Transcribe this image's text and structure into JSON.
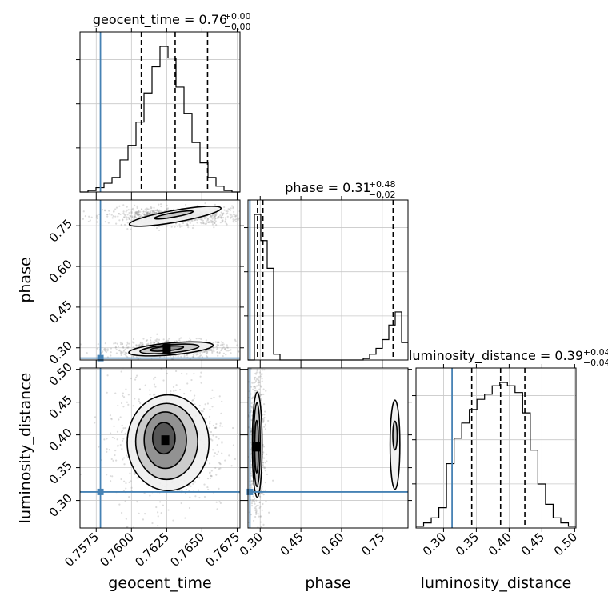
{
  "chart_data": {
    "type": "corner",
    "parameters": [
      {
        "key": "geocent_time",
        "label": "geocent_time",
        "range": [
          0.75635,
          0.7677
        ],
        "ticks": [
          "0.7575",
          "0.7600",
          "0.7625",
          "0.7650",
          "0.7675"
        ],
        "tick_values": [
          0.7575,
          0.76,
          0.7625,
          0.765,
          0.7675
        ],
        "injection": 0.7578,
        "quantiles": [
          0.7607,
          0.7631,
          0.7654
        ],
        "title_value": "0.76",
        "title_plus": "+0.00",
        "title_minus": "−0.00"
      },
      {
        "key": "phase",
        "label": "phase",
        "range": [
          0.255,
          0.845
        ],
        "ticks": [
          "0.30",
          "0.45",
          "0.60",
          "0.75"
        ],
        "tick_values": [
          0.3,
          0.45,
          0.6,
          0.75
        ],
        "injection": 0.262,
        "quantiles": [
          0.29,
          0.31,
          0.79
        ],
        "title_value": "0.31",
        "title_plus": "+0.48",
        "title_minus": "−0.02"
      },
      {
        "key": "luminosity_distance",
        "label": "luminosity_distance",
        "range": [
          0.258,
          0.502
        ],
        "ticks": [
          "0.30",
          "0.35",
          "0.40",
          "0.45",
          "0.50"
        ],
        "tick_values": [
          0.3,
          0.35,
          0.4,
          0.45,
          0.5
        ],
        "injection": 0.313,
        "quantiles": [
          0.343,
          0.387,
          0.424
        ],
        "title_value": "0.39",
        "title_plus": "+0.04",
        "title_minus": "−0.04"
      }
    ],
    "histograms": {
      "geocent_time": {
        "edges": [
          0.75635,
          0.7677
        ],
        "counts": [
          0,
          1,
          3,
          6,
          10,
          22,
          32,
          48,
          68,
          86,
          100,
          92,
          72,
          54,
          34,
          20,
          10,
          4,
          1,
          0
        ]
      },
      "phase": {
        "edges": [
          0.255,
          0.845
        ],
        "counts": [
          0,
          100,
          82,
          63,
          4,
          0,
          0,
          0,
          0,
          0,
          0,
          0,
          0,
          0,
          0,
          0,
          0,
          0,
          1,
          4,
          8,
          14,
          24,
          33,
          12
        ]
      },
      "luminosity_distance": {
        "edges": [
          0.258,
          0.502
        ],
        "counts": [
          1,
          3,
          6,
          12,
          38,
          53,
          62,
          70,
          76,
          79,
          84,
          86,
          84,
          80,
          68,
          46,
          26,
          14,
          6,
          3,
          1
        ]
      }
    },
    "contours": {
      "geocent_time-phase": [
        {
          "cx": 0.7628,
          "cy": 0.296,
          "rx": 0.003,
          "ry": 0.022,
          "rotate": -5
        },
        {
          "cx": 0.7627,
          "cy": 0.296,
          "rx": 0.0021,
          "ry": 0.015,
          "rotate": -5
        },
        {
          "cx": 0.7625,
          "cy": 0.297,
          "rx": 0.0012,
          "ry": 0.008,
          "rotate": -5
        },
        {
          "cx": 0.7631,
          "cy": 0.785,
          "rx": 0.0033,
          "ry": 0.022,
          "rotate": -10
        },
        {
          "cx": 0.763,
          "cy": 0.79,
          "rx": 0.0014,
          "ry": 0.008,
          "rotate": -10
        }
      ],
      "geocent_time-luminosity_distance": [
        {
          "cx": 0.7626,
          "cy": 0.388,
          "rx": 0.0029,
          "ry": 0.073,
          "rotate": 0
        },
        {
          "cx": 0.7625,
          "cy": 0.39,
          "rx": 0.0022,
          "ry": 0.058,
          "rotate": 0
        },
        {
          "cx": 0.7624,
          "cy": 0.392,
          "rx": 0.0015,
          "ry": 0.043,
          "rotate": 0
        },
        {
          "cx": 0.7623,
          "cy": 0.395,
          "rx": 0.0008,
          "ry": 0.024,
          "rotate": 0
        }
      ],
      "phase-luminosity_distance": [
        {
          "cx": 0.289,
          "cy": 0.385,
          "rx": 0.018,
          "ry": 0.08,
          "rotate": 0
        },
        {
          "cx": 0.288,
          "cy": 0.385,
          "rx": 0.012,
          "ry": 0.064,
          "rotate": 0
        },
        {
          "cx": 0.287,
          "cy": 0.382,
          "rx": 0.007,
          "ry": 0.04,
          "rotate": 0
        },
        {
          "cx": 0.797,
          "cy": 0.385,
          "rx": 0.018,
          "ry": 0.068,
          "rotate": 0
        },
        {
          "cx": 0.797,
          "cy": 0.399,
          "rx": 0.008,
          "ry": 0.022,
          "rotate": 0
        }
      ]
    },
    "colors": {
      "injection": "#4682b4",
      "histogram": "#000000",
      "quantile": "#000000",
      "grid": "#c8c8c8",
      "scatter": "#9a9a9a"
    }
  }
}
